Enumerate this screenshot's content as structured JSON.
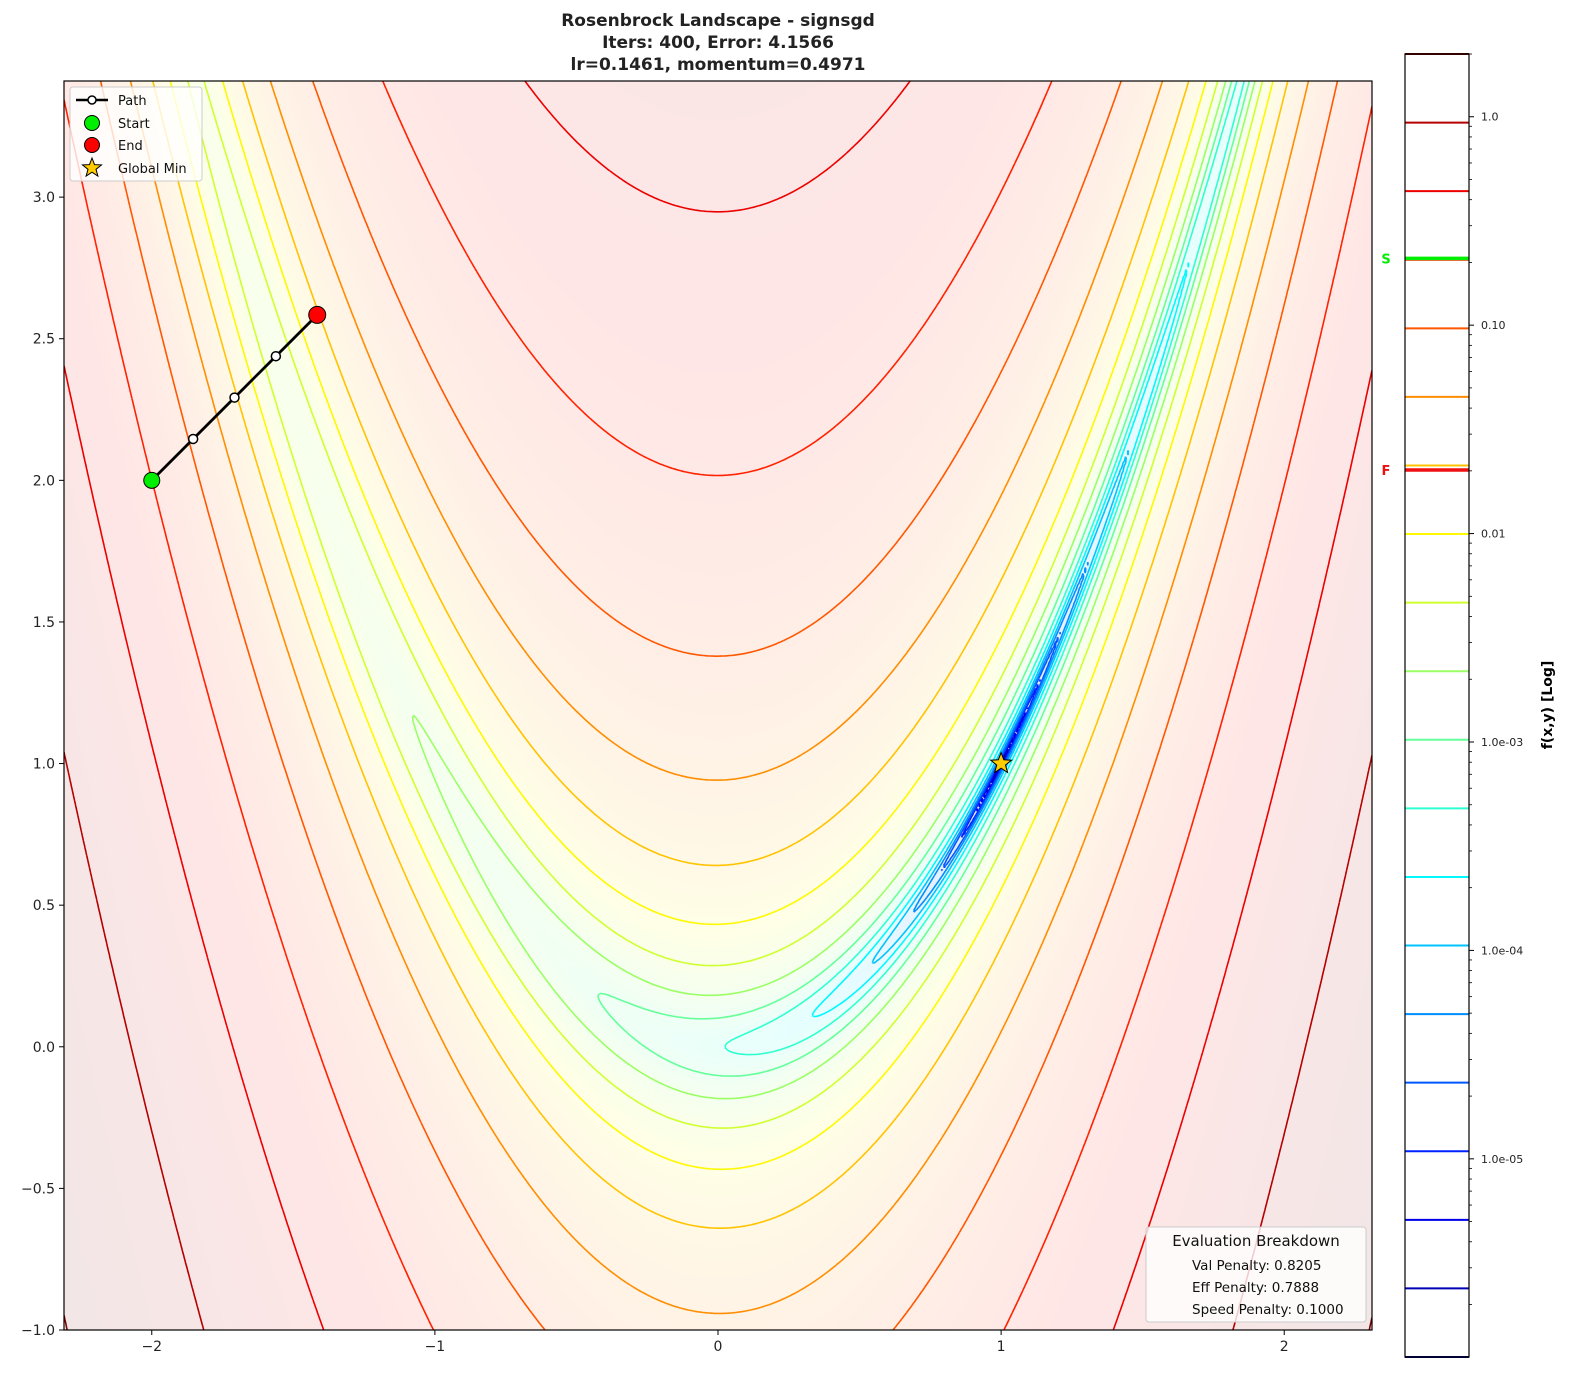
{
  "chart_data": {
    "type": "contour",
    "title": [
      "Rosenbrock Landscape - signsgd",
      "Iters: 400, Error: 4.1566",
      "lr=0.1461, momentum=0.4971"
    ],
    "xlim": [
      -2.31,
      2.31
    ],
    "ylim": [
      -1.0,
      3.41
    ],
    "xticks": [
      -2,
      -1,
      0,
      1,
      2
    ],
    "xtick_labels": [
      "−2",
      "−1",
      "0",
      "1",
      "2"
    ],
    "yticks": [
      -1.0,
      -0.5,
      0.0,
      0.5,
      1.0,
      1.5,
      2.0,
      2.5,
      3.0
    ],
    "ytick_labels": [
      "−1.0",
      "−0.5",
      "0.0",
      "0.5",
      "1.0",
      "1.5",
      "2.0",
      "2.5",
      "3.0"
    ],
    "grid": false,
    "colorbar": {
      "label": "f(x,y) [Log]",
      "scale": "log",
      "range": [
        1.12e-06,
        2.0
      ],
      "colormap": "jet",
      "level_count": 20,
      "ticks": [
        1.0,
        0.1,
        0.01,
        0.001,
        0.0001,
        1e-05
      ],
      "tick_labels": [
        "1.0",
        "0.10",
        "0.01",
        "1.0e-03",
        "1.0e-04",
        "1.0e-05"
      ],
      "markers": [
        {
          "label": "S",
          "value": 0.209,
          "color": "#00ee00"
        },
        {
          "label": "F",
          "value": 0.0202,
          "color": "#ee1111"
        }
      ]
    },
    "path": {
      "x": [
        -2.0,
        -1.8539,
        -1.7078,
        -1.5617,
        -1.4156
      ],
      "y": [
        2.0,
        2.1461,
        2.2922,
        2.4383,
        2.5844
      ]
    },
    "start": {
      "x": -2.0,
      "y": 2.0,
      "color": "#00ee00"
    },
    "end": {
      "x": -1.4156,
      "y": 2.5844,
      "color": "#ff0000"
    },
    "global_min": {
      "x": 1.0,
      "y": 1.0,
      "color": "#ffcc00"
    },
    "legend": {
      "position": "upper-left",
      "entries": [
        "Path",
        "Start",
        "End",
        "Global Min"
      ]
    },
    "evaluation": {
      "title": "Evaluation Breakdown",
      "lines": [
        "Val Penalty: 0.8205",
        "Eff Penalty: 0.7888",
        "Speed Penalty: 0.1000"
      ],
      "position": "lower-right"
    }
  }
}
